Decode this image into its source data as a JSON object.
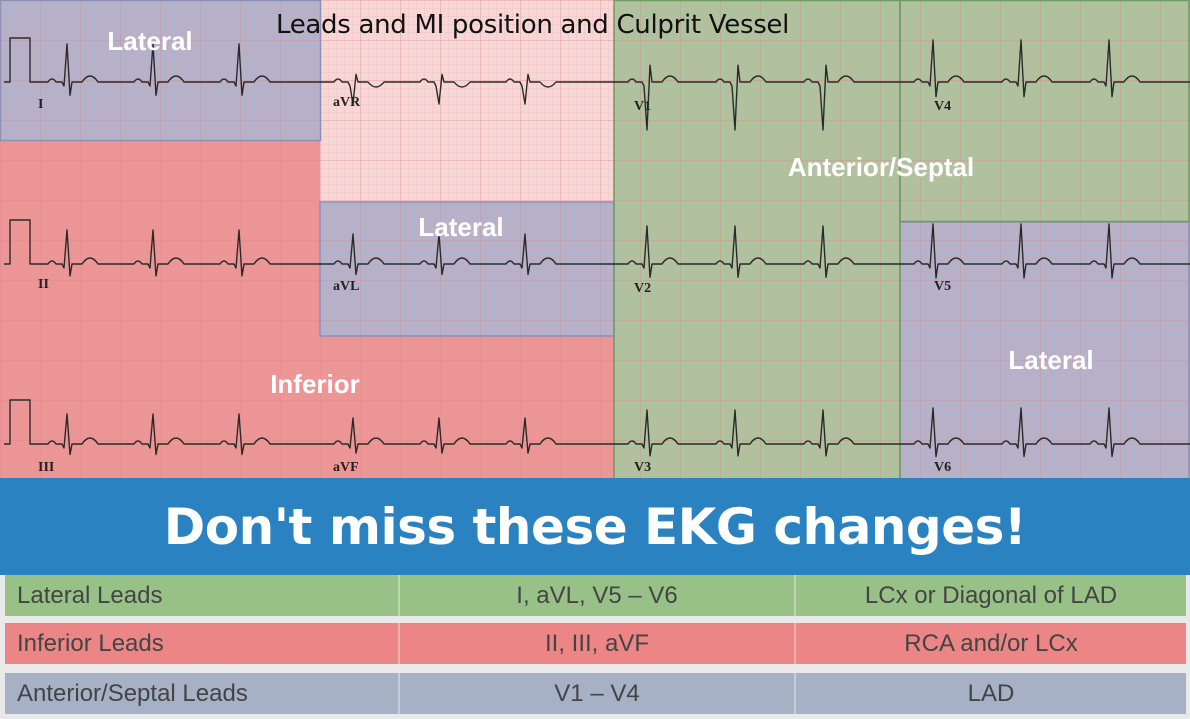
{
  "title": "Leads and MI position and Culprit Vessel",
  "regions": {
    "lateral_top": "Lateral",
    "lateral_mid": "Lateral",
    "lateral_right": "Lateral",
    "inferior": "Inferior",
    "anterior_septal": "Anterior/Septal"
  },
  "leads": {
    "I": "I",
    "II": "II",
    "III": "III",
    "aVR": "aVR",
    "aVL": "aVL",
    "aVF": "aVF",
    "V1": "V1",
    "V2": "V2",
    "V3": "V3",
    "V4": "V4",
    "V5": "V5",
    "V6": "V6"
  },
  "colors": {
    "lateral": "#a3a7c6",
    "inferior": "#ea8585",
    "anterior": "#9cbc8f",
    "avr": "#f6cfcf",
    "grid_bg": "#fbeeee",
    "banner": "#2a82c0"
  },
  "banner": "Don't miss these EKG changes!",
  "table": [
    {
      "region": "Lateral Leads",
      "leads": "I, aVL, V5 – V6",
      "vessel": "LCx or Diagonal of LAD",
      "color": "#98c188"
    },
    {
      "region": "Inferior Leads",
      "leads": "II, III, aVF",
      "vessel": "RCA and/or LCx",
      "color": "#ec8585"
    },
    {
      "region": "Anterior/Septal Leads",
      "leads": "V1 – V4",
      "vessel": "LAD",
      "color": "#a6b1c6"
    }
  ]
}
